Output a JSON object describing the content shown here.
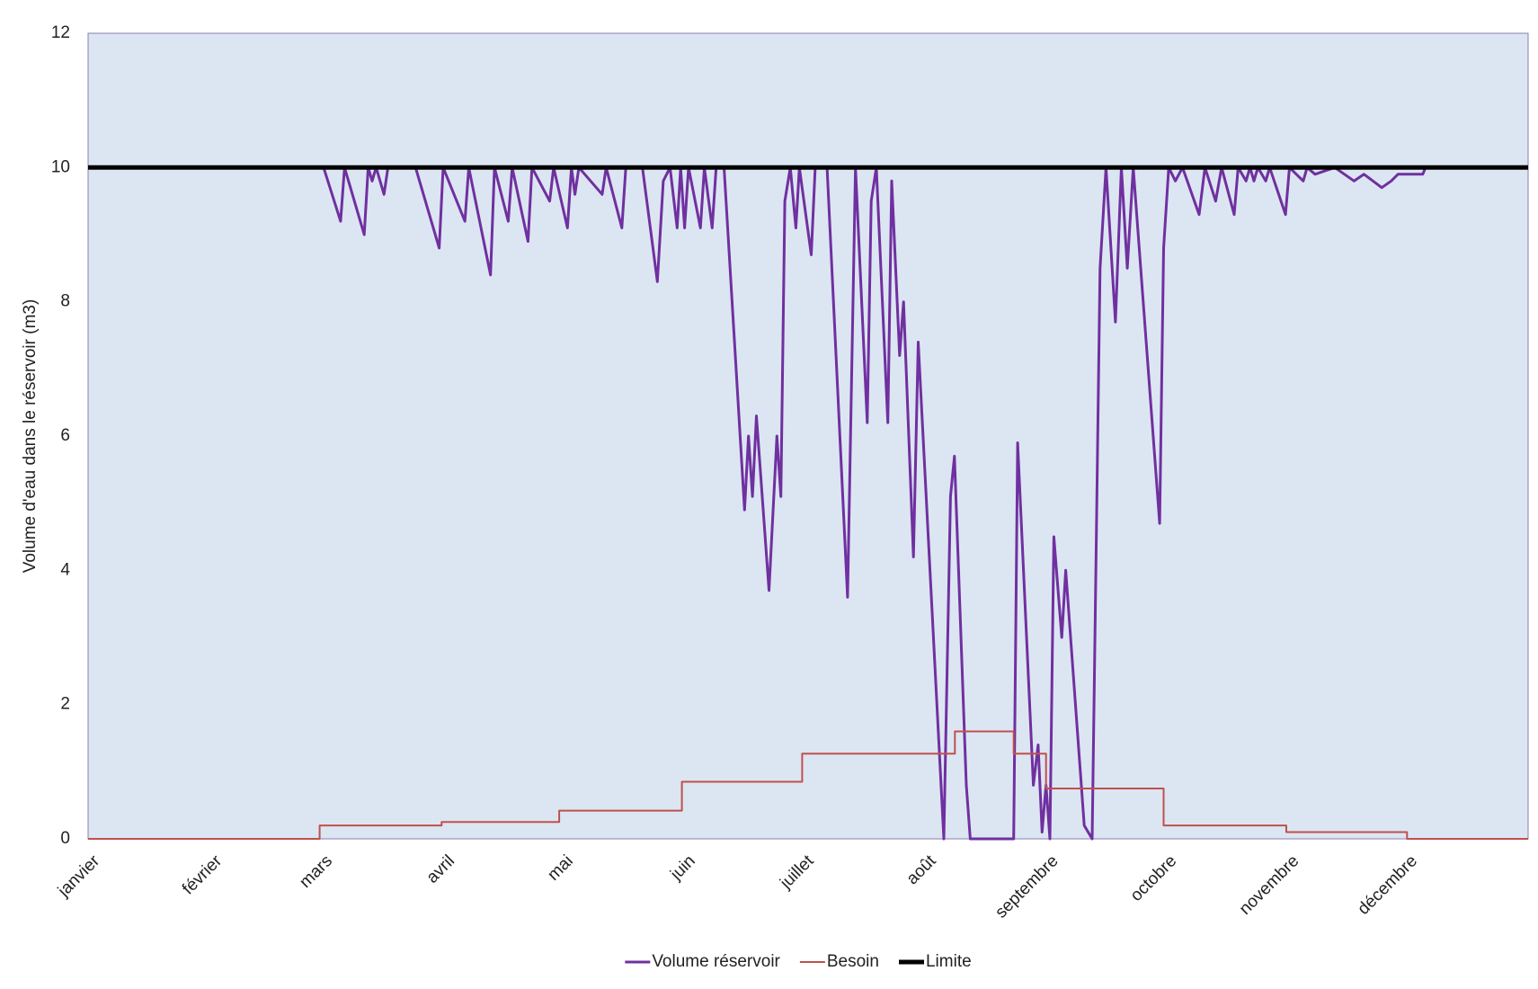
{
  "chart_data": {
    "type": "line",
    "ylabel": "Volume d'eau dans le réservoir (m3)",
    "xlim": [
      0,
      365
    ],
    "xticks": [
      {
        "value": 0,
        "label": "janvier"
      },
      {
        "value": 31,
        "label": "février"
      },
      {
        "value": 59,
        "label": "mars"
      },
      {
        "value": 90,
        "label": "avril"
      },
      {
        "value": 120,
        "label": "mai"
      },
      {
        "value": 151,
        "label": "juin"
      },
      {
        "value": 181,
        "label": "juillet"
      },
      {
        "value": 212,
        "label": "août"
      },
      {
        "value": 243,
        "label": "septembre"
      },
      {
        "value": 273,
        "label": "octobre"
      },
      {
        "value": 304,
        "label": "novembre"
      },
      {
        "value": 334,
        "label": "décembre"
      }
    ],
    "ylim": [
      0,
      12
    ],
    "yticks": [
      0,
      2,
      4,
      6,
      8,
      10,
      12
    ],
    "grid": false,
    "legend": "bottom",
    "background": "#dce6f2",
    "series": [
      {
        "name": "Volume réservoir",
        "color": "#7030a0",
        "width": 3,
        "x": [
          0,
          59.7,
          64,
          65,
          70,
          71,
          72,
          73,
          75,
          76,
          83,
          89,
          90,
          95.5,
          96.5,
          102,
          103,
          106.5,
          107.5,
          111.5,
          112.5,
          117,
          118,
          121.5,
          122.5,
          123.4,
          124.4,
          130.3,
          131.3,
          135.3,
          136.3,
          140.5,
          144.3,
          145.8,
          147.5,
          149.3,
          150.2,
          151.2,
          152.2,
          155.2,
          156.2,
          158.2,
          159.2,
          161.2,
          166.4,
          167.4,
          168.4,
          169.4,
          172.6,
          174.6,
          175.6,
          176.6,
          178,
          179.4,
          180.3,
          183.3,
          184.3,
          187.3,
          192.5,
          194.5,
          197.5,
          198.5,
          199.8,
          202.7,
          203.7,
          205.7,
          206.7,
          209.2,
          210.4,
          216.9,
          218.6,
          219.6,
          222.6,
          223.6,
          234.6,
          235.6,
          239.6,
          240.8,
          241.8,
          242.8,
          243.8,
          244.8,
          246.8,
          247.8,
          252.5,
          254.5,
          256.5,
          258,
          260.4,
          261.9,
          263.4,
          264.9,
          271.6,
          272.6,
          273.9,
          275.6,
          277.4,
          281.6,
          283.1,
          285.8,
          287.3,
          290.5,
          291.5,
          293.5,
          294.5,
          295.5,
          296.5,
          298.5,
          299.5,
          303.5,
          304.5,
          308,
          309,
          311,
          316,
          320.9,
          323.4,
          327.9,
          330.3,
          332,
          338.3,
          339
        ],
        "values": [
          10,
          10,
          9.2,
          10,
          9.0,
          10,
          9.8,
          10,
          9.6,
          10,
          10,
          8.8,
          10,
          9.2,
          10,
          8.4,
          10,
          9.2,
          10,
          8.9,
          10,
          9.5,
          10,
          9.1,
          10,
          9.6,
          10,
          9.6,
          10,
          9.1,
          10,
          10,
          8.3,
          9.8,
          10,
          9.1,
          10,
          9.1,
          10,
          9.1,
          10,
          9.1,
          10,
          10,
          4.9,
          6.0,
          5.1,
          6.3,
          3.7,
          6.0,
          5.1,
          9.5,
          10,
          9.1,
          10,
          8.7,
          10,
          10,
          3.6,
          10,
          6.2,
          9.5,
          10,
          6.2,
          9.8,
          7.2,
          8.0,
          4.2,
          7.4,
          0,
          5.1,
          5.7,
          0.8,
          0,
          0,
          5.9,
          0.8,
          1.4,
          0.1,
          0.8,
          0,
          4.5,
          3.0,
          4.0,
          0.2,
          0,
          8.5,
          10,
          7.7,
          10,
          8.5,
          10,
          4.7,
          8.8,
          10,
          9.8,
          10,
          9.3,
          10,
          9.5,
          10,
          9.3,
          10,
          9.8,
          10,
          9.8,
          10,
          9.8,
          10,
          9.3,
          10,
          9.8,
          10,
          9.9,
          10,
          9.8,
          9.9,
          9.7,
          9.8,
          9.9,
          9.9,
          10
        ]
      },
      {
        "name": "Besoin",
        "color": "#c0504d",
        "width": 2,
        "x": [
          0,
          58.7,
          58.7,
          89.6,
          89.6,
          119.4,
          119.4,
          150.5,
          150.5,
          181,
          181,
          219.7,
          219.7,
          234.6,
          234.6,
          242.8,
          242.8,
          272.6,
          272.6,
          303.7,
          303.7,
          334.3,
          334.3,
          365
        ],
        "values": [
          0,
          0,
          0.2,
          0.2,
          0.25,
          0.25,
          0.42,
          0.42,
          0.85,
          0.85,
          1.27,
          1.27,
          1.6,
          1.6,
          1.27,
          1.27,
          0.75,
          0.75,
          0.2,
          0.2,
          0.1,
          0.1,
          0,
          0
        ]
      },
      {
        "name": "Limite",
        "color": "#000000",
        "width": 5,
        "x": [
          0,
          365
        ],
        "values": [
          10,
          10
        ]
      }
    ]
  }
}
